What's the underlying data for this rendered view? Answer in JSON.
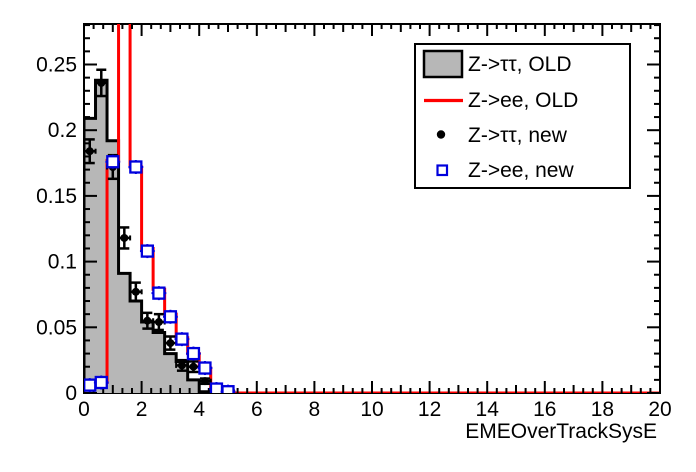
{
  "chart_data": {
    "type": "histogram",
    "title": "",
    "xlabel": "EMEOverTrackSysE",
    "ylabel": "",
    "xlim": [
      0,
      20
    ],
    "ylim": [
      0,
      0.2808
    ],
    "grid": false,
    "bin_width": 0.4,
    "bin_start": 0,
    "x_ticks": [
      0,
      2,
      4,
      6,
      8,
      10,
      12,
      14,
      16,
      18,
      20
    ],
    "x_tick_labels": [
      "0",
      "2",
      "4",
      "6",
      "8",
      "10",
      "12",
      "14",
      "16",
      "18",
      "20"
    ],
    "y_ticks": [
      0,
      0.05,
      0.1,
      0.15,
      0.2,
      0.25
    ],
    "y_tick_labels": [
      "0",
      "0.05",
      "0.1",
      "0.15",
      "0.2",
      "0.25"
    ],
    "series": [
      {
        "name": "Z->ττ, OLD",
        "type": "filled-step-histogram",
        "fill_color": "#b7b7b7",
        "line_color": "#000000",
        "values": [
          0.209,
          0.238,
          0.192,
          0.091,
          0.07,
          0.054,
          0.046,
          0.03,
          0.024,
          0.01,
          0.001,
          0,
          0
        ]
      },
      {
        "name": "Z->ee, OLD",
        "type": "step-histogram",
        "line_color": "#ff0000",
        "note": "bin [1.2,1.6] exceeds y-axis maximum and is clipped at frame top",
        "values": [
          0.006,
          0.008,
          0.177,
          0.31,
          0.172,
          0.11,
          0.079,
          0.06,
          0.042,
          0.03,
          0.019,
          0.004,
          0.001
        ]
      },
      {
        "name": "Z->ττ, new",
        "type": "points-with-errors",
        "marker": "filled-circle",
        "color": "#000000",
        "x": [
          0.2,
          0.6,
          1.0,
          1.4,
          1.8,
          2.2,
          2.6,
          3.0,
          3.4,
          3.8,
          4.2,
          4.6,
          5.0
        ],
        "y": [
          0.184,
          0.236,
          0.172,
          0.118,
          0.077,
          0.055,
          0.054,
          0.038,
          0.021,
          0.02,
          0.009,
          0.003,
          0.001
        ],
        "ey": [
          0.009,
          0.01,
          0.009,
          0.008,
          0.007,
          0.006,
          0.006,
          0.005,
          0.004,
          0.004,
          0.002,
          0.001,
          0.001
        ]
      },
      {
        "name": "Z->ee, new",
        "type": "points-with-errors",
        "marker": "open-square",
        "color": "#0000dd",
        "x": [
          0.2,
          0.6,
          1.0,
          1.8,
          2.2,
          2.6,
          3.0,
          3.4,
          3.8,
          4.2,
          4.6,
          5.0
        ],
        "y": [
          0.006,
          0.008,
          0.176,
          0.172,
          0.108,
          0.076,
          0.058,
          0.041,
          0.03,
          0.019,
          0.003,
          0.001
        ]
      }
    ]
  },
  "legend": {
    "entries": [
      {
        "label": "Z->ττ, OLD",
        "swatch": "gray-filled-box"
      },
      {
        "label": "Z->ee, OLD",
        "swatch": "red-line"
      },
      {
        "label": "Z->ττ, new",
        "swatch": "black-dot"
      },
      {
        "label": "Z->ee, new",
        "swatch": "blue-open-square"
      }
    ]
  },
  "colors": {
    "frame": "#000000",
    "gray_fill": "#b7b7b7",
    "red": "#ff0000",
    "blue": "#0000dd",
    "black": "#000000",
    "background": "#ffffff"
  }
}
